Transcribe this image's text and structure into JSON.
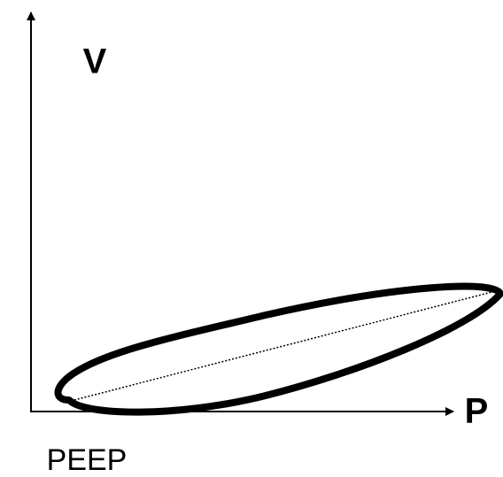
{
  "labels": {
    "y_axis": "V",
    "x_axis": "P",
    "origin": "PEEP"
  }
}
